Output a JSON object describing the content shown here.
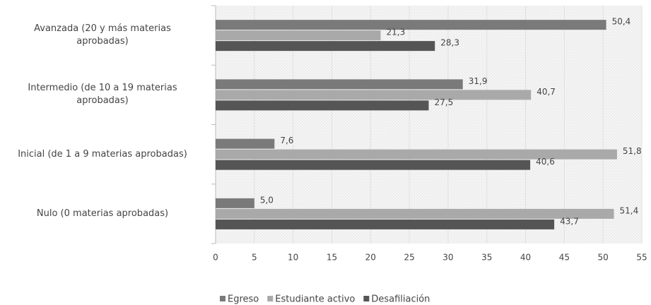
{
  "chart_data": {
    "type": "hbar",
    "categories": [
      "Avanzada (20 y más materias\naprobadas)",
      "Intermedio (de 10 a 19 materias\naprobadas)",
      "Inicial (de 1 a 9 materias aprobadas)",
      "Nulo (0 materias aprobadas)"
    ],
    "series": [
      {
        "name": "Egreso",
        "color": "#7a7a7a",
        "values": [
          50.4,
          31.9,
          7.6,
          5.0
        ],
        "value_labels": [
          "50,4",
          "31,9",
          "7,6",
          "5,0"
        ]
      },
      {
        "name": "Estudiante activo",
        "color": "#a9a9a9",
        "values": [
          21.3,
          40.7,
          51.8,
          51.4
        ],
        "value_labels": [
          "21,3",
          "40,7",
          "51,8",
          "51,4"
        ]
      },
      {
        "name": "Desafiliación",
        "color": "#555555",
        "values": [
          28.3,
          27.5,
          40.6,
          43.7
        ],
        "value_labels": [
          "28,3",
          "27,5",
          "40,6",
          "43,7"
        ]
      }
    ],
    "xlim": [
      0,
      55
    ],
    "xticks": [
      0,
      5,
      10,
      15,
      20,
      25,
      30,
      35,
      40,
      45,
      50,
      55
    ],
    "grid": true
  }
}
